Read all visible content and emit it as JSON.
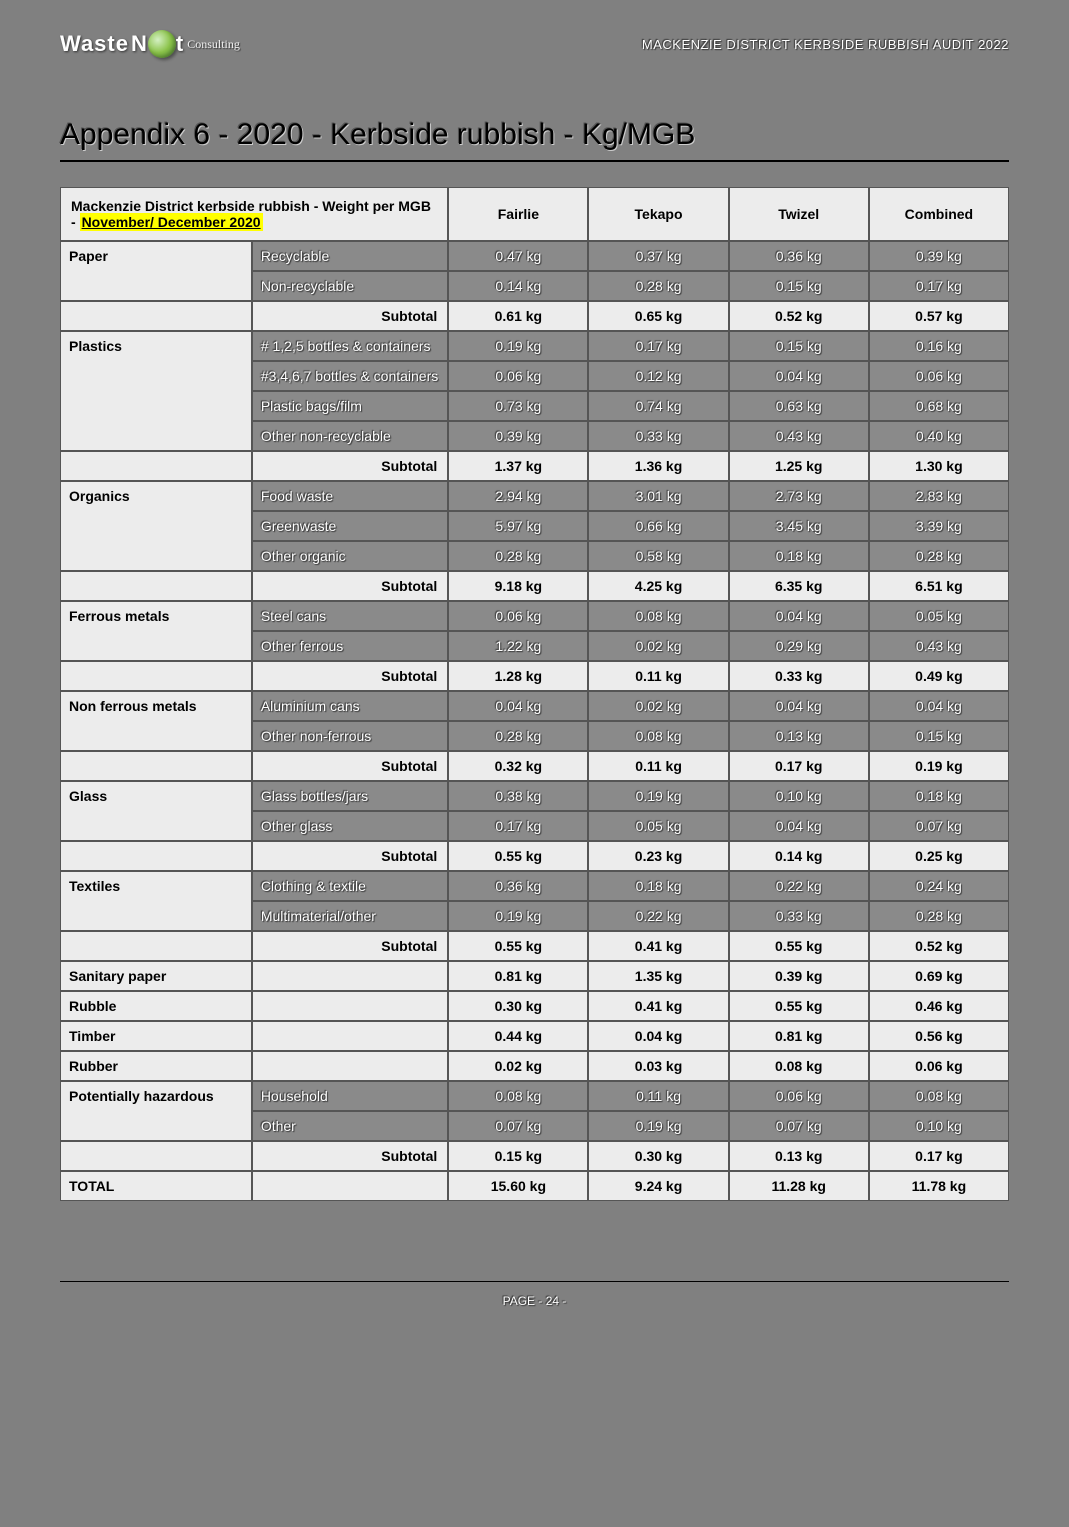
{
  "header": {
    "logo_waste": "Waste",
    "logo_n": "N",
    "logo_t": "t",
    "logo_consulting": "Consulting",
    "doc_title": "MACKENZIE DISTRICT KERBSIDE RUBBISH AUDIT 2022"
  },
  "title": "Appendix 6 - 2020 - Kerbside rubbish - Kg/MGB",
  "table_header": {
    "left_line1": "Mackenzie District kerbside rubbish - Weight per MGB - ",
    "left_highlight": "November/ December 2020",
    "cols": [
      "Fairlie",
      "Tekapo",
      "Twizel",
      "Combined"
    ]
  },
  "groups": [
    {
      "name": "Paper",
      "rows": [
        {
          "label": "Recyclable",
          "vals": [
            "0.47 kg",
            "0.37 kg",
            "0.36 kg",
            "0.39 kg"
          ]
        },
        {
          "label": "Non-recyclable",
          "vals": [
            "0.14 kg",
            "0.28 kg",
            "0.15 kg",
            "0.17 kg"
          ]
        }
      ],
      "subtotal": [
        "0.61 kg",
        "0.65 kg",
        "0.52 kg",
        "0.57 kg"
      ]
    },
    {
      "name": "Plastics",
      "rows": [
        {
          "label": "# 1,2,5 bottles & containers",
          "vals": [
            "0.19 kg",
            "0.17 kg",
            "0.15 kg",
            "0.16 kg"
          ]
        },
        {
          "label": "#3,4,6,7 bottles & containers",
          "vals": [
            "0.06 kg",
            "0.12 kg",
            "0.04 kg",
            "0.06 kg"
          ]
        },
        {
          "label": "Plastic bags/film",
          "vals": [
            "0.73 kg",
            "0.74 kg",
            "0.63 kg",
            "0.68 kg"
          ]
        },
        {
          "label": "Other non-recyclable",
          "vals": [
            "0.39 kg",
            "0.33 kg",
            "0.43 kg",
            "0.40 kg"
          ]
        }
      ],
      "subtotal": [
        "1.37 kg",
        "1.36 kg",
        "1.25 kg",
        "1.30 kg"
      ]
    },
    {
      "name": "Organics",
      "rows": [
        {
          "label": "Food waste",
          "vals": [
            "2.94 kg",
            "3.01 kg",
            "2.73 kg",
            "2.83 kg"
          ]
        },
        {
          "label": "Greenwaste",
          "vals": [
            "5.97 kg",
            "0.66 kg",
            "3.45 kg",
            "3.39 kg"
          ]
        },
        {
          "label": "Other organic",
          "vals": [
            "0.28 kg",
            "0.58 kg",
            "0.18 kg",
            "0.28 kg"
          ]
        }
      ],
      "subtotal": [
        "9.18 kg",
        "4.25 kg",
        "6.35 kg",
        "6.51 kg"
      ]
    },
    {
      "name": "Ferrous metals",
      "rows": [
        {
          "label": "Steel cans",
          "vals": [
            "0.06 kg",
            "0.08 kg",
            "0.04 kg",
            "0.05 kg"
          ]
        },
        {
          "label": "Other ferrous",
          "vals": [
            "1.22 kg",
            "0.02 kg",
            "0.29 kg",
            "0.43 kg"
          ]
        }
      ],
      "subtotal": [
        "1.28 kg",
        "0.11 kg",
        "0.33 kg",
        "0.49 kg"
      ]
    },
    {
      "name": "Non ferrous metals",
      "rows": [
        {
          "label": "Aluminium cans",
          "vals": [
            "0.04 kg",
            "0.02 kg",
            "0.04 kg",
            "0.04 kg"
          ]
        },
        {
          "label": "Other non-ferrous",
          "vals": [
            "0.28 kg",
            "0.08 kg",
            "0.13 kg",
            "0.15 kg"
          ]
        }
      ],
      "subtotal": [
        "0.32 kg",
        "0.11 kg",
        "0.17 kg",
        "0.19 kg"
      ]
    },
    {
      "name": "Glass",
      "rows": [
        {
          "label": "Glass bottles/jars",
          "vals": [
            "0.38 kg",
            "0.19 kg",
            "0.10 kg",
            "0.18 kg"
          ]
        },
        {
          "label": "Other glass",
          "vals": [
            "0.17 kg",
            "0.05 kg",
            "0.04 kg",
            "0.07 kg"
          ]
        }
      ],
      "subtotal": [
        "0.55 kg",
        "0.23 kg",
        "0.14 kg",
        "0.25 kg"
      ]
    },
    {
      "name": "Textiles",
      "rows": [
        {
          "label": "Clothing & textile",
          "vals": [
            "0.36 kg",
            "0.18 kg",
            "0.22 kg",
            "0.24 kg"
          ]
        },
        {
          "label": "Multimaterial/other",
          "vals": [
            "0.19 kg",
            "0.22 kg",
            "0.33 kg",
            "0.28 kg"
          ]
        }
      ],
      "subtotal": [
        "0.55 kg",
        "0.41 kg",
        "0.55 kg",
        "0.52 kg"
      ]
    }
  ],
  "single_rows": [
    {
      "name": "Sanitary paper",
      "vals": [
        "0.81 kg",
        "1.35 kg",
        "0.39 kg",
        "0.69 kg"
      ]
    },
    {
      "name": "Rubble",
      "vals": [
        "0.30 kg",
        "0.41 kg",
        "0.55 kg",
        "0.46 kg"
      ]
    },
    {
      "name": "Timber",
      "vals": [
        "0.44 kg",
        "0.04 kg",
        "0.81 kg",
        "0.56 kg"
      ]
    },
    {
      "name": "Rubber",
      "vals": [
        "0.02 kg",
        "0.03 kg",
        "0.08 kg",
        "0.06 kg"
      ]
    }
  ],
  "hazardous": {
    "name": "Potentially hazardous",
    "rows": [
      {
        "label": "Household",
        "vals": [
          "0.08 kg",
          "0.11 kg",
          "0.06 kg",
          "0.08 kg"
        ]
      },
      {
        "label": "Other",
        "vals": [
          "0.07 kg",
          "0.19 kg",
          "0.07 kg",
          "0.10 kg"
        ]
      }
    ],
    "subtotal": [
      "0.15 kg",
      "0.30 kg",
      "0.13 kg",
      "0.17 kg"
    ]
  },
  "total": {
    "label": "TOTAL",
    "vals": [
      "15.60 kg",
      "9.24 kg",
      "11.28 kg",
      "11.78 kg"
    ]
  },
  "subtotal_label": "Subtotal",
  "footer": "PAGE - 24 -"
}
